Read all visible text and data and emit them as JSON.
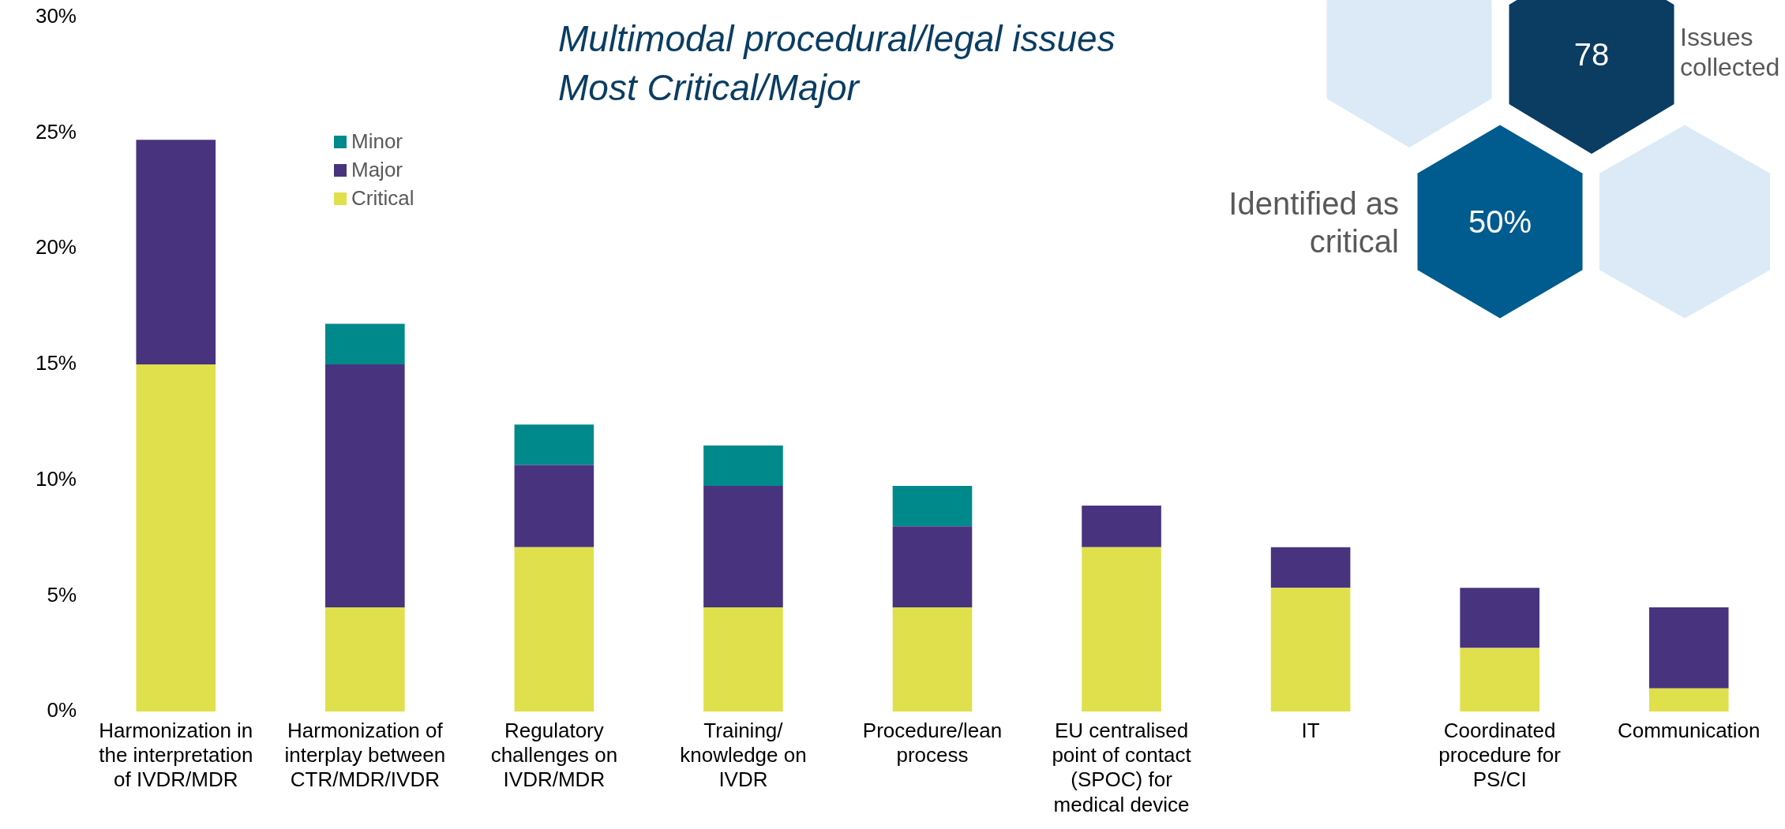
{
  "chart_data": {
    "type": "bar",
    "title": "Multimodal procedural/legal issues",
    "subtitle": "Most Critical/Major",
    "categories": [
      "Harmonization in the interpretation of IVDR/MDR",
      "Harmonization of interplay between CTR/MDR/IVDR",
      "Regulatory challenges on IVDR/MDR",
      "Training/ knowledge on IVDR",
      "Procedure/lean process",
      "EU centralised point of contact (SPOC) for medical device",
      "IT",
      "Coordinated procedure for PS/CI",
      "Communication"
    ],
    "stacked": true,
    "series": [
      {
        "name": "Critical",
        "color": "#dfe04c",
        "values": [
          15.0,
          4.5,
          7.1,
          4.5,
          4.5,
          7.1,
          5.35,
          2.75,
          1.0
        ]
      },
      {
        "name": "Major",
        "color": "#48337f",
        "values": [
          9.7,
          10.5,
          3.55,
          5.25,
          3.5,
          1.8,
          1.75,
          2.6,
          3.5
        ]
      },
      {
        "name": "Minor",
        "color": "#00898a",
        "values": [
          null,
          1.75,
          1.75,
          1.75,
          1.75,
          null,
          null,
          null,
          null
        ]
      }
    ],
    "ylim": [
      0,
      30
    ],
    "yticks": [
      {
        "value": 0,
        "label": "0%"
      },
      {
        "value": 5,
        "label": "5%"
      },
      {
        "value": 10,
        "label": "10%"
      },
      {
        "value": 15,
        "label": "15%"
      },
      {
        "value": 20,
        "label": "20%"
      },
      {
        "value": 25,
        "label": "25%"
      },
      {
        "value": 30,
        "label": "30%"
      }
    ],
    "grid": false,
    "legend": "top left",
    "annotations": [
      "78",
      "Issues collected",
      "Identified as critical",
      "50%"
    ]
  }
}
